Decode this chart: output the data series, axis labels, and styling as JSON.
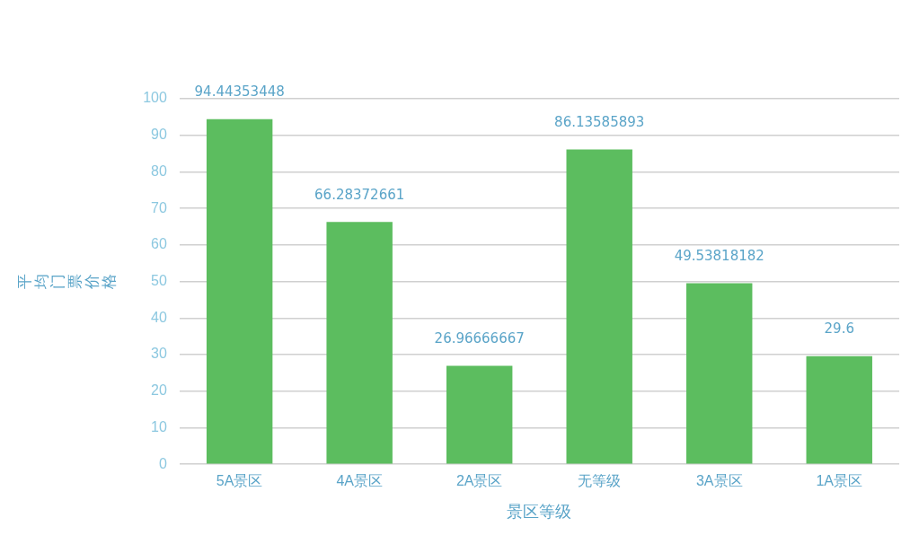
{
  "chart_data": {
    "type": "bar",
    "xlabel": "景区等级",
    "ylabel": "平均门票价格",
    "categories": [
      "5A景区",
      "4A景区",
      "2A景区",
      "无等级",
      "3A景区",
      "1A景区"
    ],
    "values": [
      94.44353448,
      66.28372661,
      26.96666667,
      86.13585893,
      49.53818182,
      29.6
    ],
    "color": "#5cbd5f",
    "ylim": [
      0,
      100
    ],
    "yticks": [
      0,
      10,
      20,
      30,
      40,
      50,
      60,
      70,
      80,
      90,
      100
    ],
    "grid": "y",
    "data_labels": true,
    "legend": false
  }
}
